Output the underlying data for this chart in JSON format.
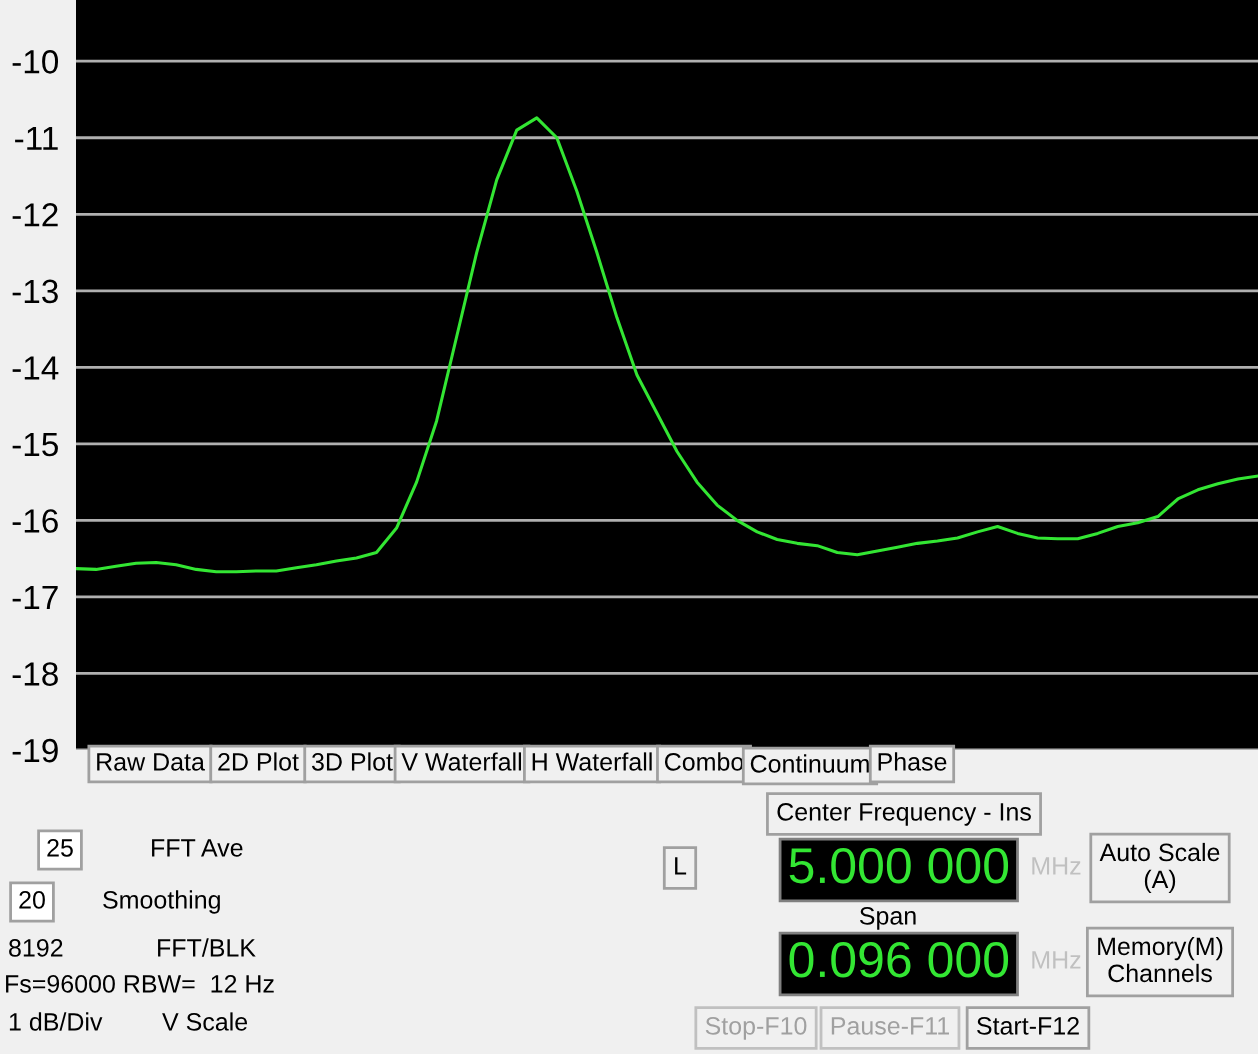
{
  "chart_data": {
    "type": "line",
    "categories": [
      null,
      null,
      null,
      null,
      null,
      null,
      null,
      null,
      null,
      null,
      null,
      null,
      null,
      null,
      null,
      null,
      null,
      null,
      null,
      null,
      null,
      null,
      null,
      null,
      null,
      null,
      null,
      null,
      null,
      null,
      null,
      null,
      null,
      null,
      null,
      null,
      null,
      null,
      null,
      null,
      null,
      null,
      null,
      null,
      null,
      null,
      null,
      null,
      null,
      null,
      null,
      null,
      null,
      null,
      null,
      null,
      null,
      null,
      null,
      null
    ],
    "series": [
      {
        "color": "#33e633",
        "values": [
          -16.63,
          -16.64,
          -16.6,
          -16.56,
          -16.55,
          -16.58,
          -16.64,
          -16.67,
          -16.67,
          -16.66,
          -16.66,
          -16.62,
          -16.58,
          -16.53,
          -16.49,
          -16.42,
          -16.1,
          -15.5,
          -14.7,
          -13.6,
          -12.5,
          -11.55,
          -10.9,
          -10.74,
          -11.0,
          -11.7,
          -12.5,
          -13.35,
          -14.1,
          -14.6,
          -15.1,
          -15.5,
          -15.8,
          -16.0,
          -16.15,
          -16.25,
          -16.3,
          -16.33,
          -16.42,
          -16.45,
          -16.4,
          -16.35,
          -16.3,
          -16.27,
          -16.23,
          -16.15,
          -16.08,
          -16.17,
          -16.23,
          -16.24,
          -16.24,
          -16.17,
          -16.08,
          -16.03,
          -15.95,
          -15.72,
          -15.6,
          -15.52,
          -15.46,
          -15.42
        ]
      }
    ],
    "ylim": [
      -19,
      -9.2
    ],
    "yticks": [
      -10,
      -11,
      -12,
      -13,
      -14,
      -15,
      -16,
      -17,
      -18,
      -19
    ],
    "grid": "y",
    "marker": "none",
    "line_style": "solid",
    "tick_labels": "y",
    "annotations": [
      "Raw Data",
      "2D Plot",
      "3D Plot",
      "V Waterfall",
      "H Waterfall",
      "Combo",
      "Continuum",
      "Phase",
      "Center Frequency - Ins",
      "L",
      "5.000 000",
      "MHz",
      "Auto Scale\n(A)",
      "Span",
      "0.096 000",
      "MHz",
      "Memory(M)\nChannels",
      "Stop-F10",
      "Pause-F11",
      "Start-F12",
      "25",
      "FFT Ave",
      "20",
      "Smoothing",
      "8192",
      "FFT/BLK",
      "Fs=96000 RBW=  12 Hz",
      "1 dB/Div",
      "V Scale"
    ]
  }
}
